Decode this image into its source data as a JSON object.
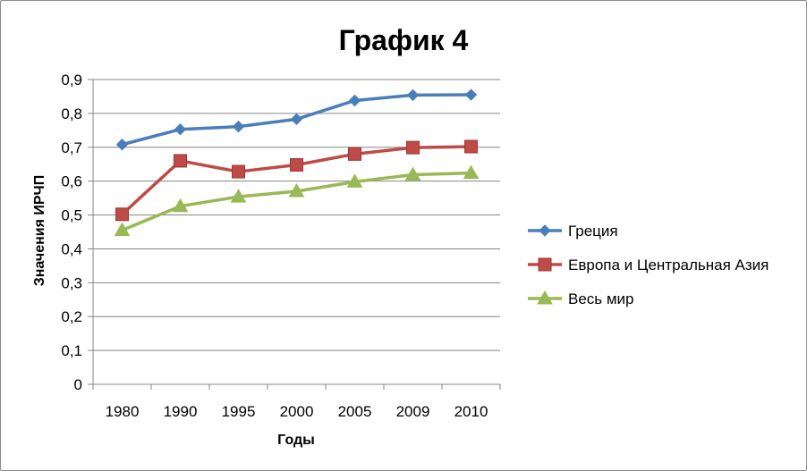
{
  "chart_data": {
    "type": "line",
    "title": "График 4",
    "xlabel": "Годы",
    "ylabel": "Значения ИРЧП",
    "categories": [
      "1980",
      "1990",
      "1995",
      "2000",
      "2005",
      "2009",
      "2010"
    ],
    "ylim": [
      0,
      0.9
    ],
    "yticks": [
      "0",
      "0,1",
      "0,2",
      "0,3",
      "0,4",
      "0,5",
      "0,6",
      "0,7",
      "0,8",
      "0,9"
    ],
    "grid": true,
    "legend_position": "right",
    "series": [
      {
        "name": "Греция",
        "color": "#4a7ebb",
        "marker": "diamond",
        "values": [
          0.708,
          0.753,
          0.761,
          0.783,
          0.838,
          0.854,
          0.855
        ]
      },
      {
        "name": "Европа и Центральная Азия",
        "color": "#be4b48",
        "marker": "square",
        "values": [
          0.502,
          0.66,
          0.628,
          0.648,
          0.68,
          0.699,
          0.702
        ]
      },
      {
        "name": "Весь мир",
        "color": "#98b954",
        "marker": "triangle",
        "values": [
          0.455,
          0.526,
          0.554,
          0.57,
          0.598,
          0.619,
          0.624
        ]
      }
    ]
  }
}
